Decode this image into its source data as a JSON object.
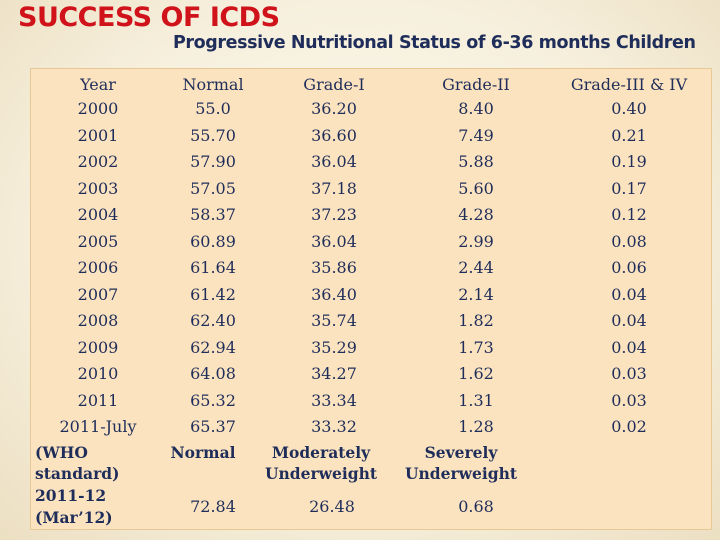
{
  "title": "SUCCESS OF ICDS",
  "subtitle": "Progressive Nutritional Status of 6-36 months Children",
  "table": {
    "headers": [
      "Year",
      "Normal",
      "Grade-I",
      "Grade-II",
      "Grade-III & IV"
    ],
    "rows": [
      [
        "2000",
        "55.0",
        "36.20",
        "8.40",
        "0.40"
      ],
      [
        "2001",
        "55.70",
        "36.60",
        "7.49",
        "0.21"
      ],
      [
        "2002",
        "57.90",
        "36.04",
        "5.88",
        "0.19"
      ],
      [
        "2003",
        "57.05",
        "37.18",
        "5.60",
        "0.17"
      ],
      [
        "2004",
        "58.37",
        "37.23",
        "4.28",
        "0.12"
      ],
      [
        "2005",
        "60.89",
        "36.04",
        "2.99",
        "0.08"
      ],
      [
        "2006",
        "61.64",
        "35.86",
        "2.44",
        "0.06"
      ],
      [
        "2007",
        "61.42",
        "36.40",
        "2.14",
        "0.04"
      ],
      [
        "2008",
        "62.40",
        "35.74",
        "1.82",
        "0.04"
      ],
      [
        "2009",
        "62.94",
        "35.29",
        "1.73",
        "0.04"
      ],
      [
        "2010",
        "64.08",
        "34.27",
        "1.62",
        "0.03"
      ],
      [
        "2011",
        "65.32",
        "33.34",
        "1.31",
        "0.03"
      ],
      [
        "2011-July",
        "65.37",
        "33.32",
        "1.28",
        "0.02"
      ]
    ],
    "who": {
      "label_line1": "(WHO",
      "label_line2": "standard)",
      "normal": "Normal",
      "moderate_line1": "Moderately",
      "moderate_line2": "Underweight",
      "severe_line1": "Severely",
      "severe_line2": "Underweight"
    },
    "final": {
      "label_line1": "2011-12",
      "label_line2": "(Mar’12)",
      "normal": "72.84",
      "moderate": "26.48",
      "severe": "0.68"
    }
  }
}
